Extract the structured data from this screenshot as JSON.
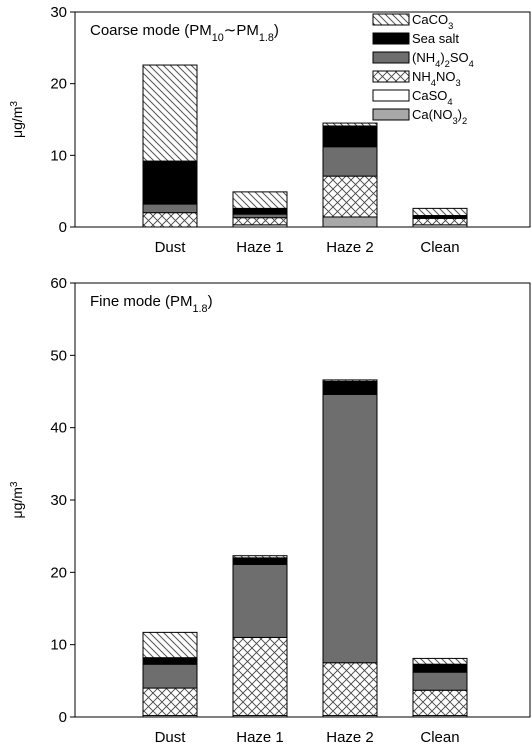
{
  "colors": {
    "CaCO3": "#ffffff",
    "Sea salt": "#ffffff",
    "(NH4)2SO4": "#6e6e6e",
    "NH4NO3": "#ffffff",
    "CaSO4": "#ffffff",
    "Ca(NO3)2": "#a8a8a8"
  },
  "chart_data": [
    {
      "type": "bar",
      "stacked": true,
      "title": {
        "text": "Coarse mode (PM",
        "sub1": "10",
        "sep": "∼",
        "text2": "PM",
        "sub2": "1.8",
        "close": ")"
      },
      "ylabel": "μg/m",
      "ylabel_sup": "3",
      "ylim": [
        0,
        30
      ],
      "yticks": [
        "0",
        "10",
        "20",
        "30"
      ],
      "categories": [
        "Dust",
        "Haze 1",
        "Haze 2",
        "Clean"
      ],
      "legend_position": "top-right",
      "series": [
        {
          "key": "Ca(NO3)2",
          "values": [
            0,
            0,
            1.4,
            0
          ]
        },
        {
          "key": "CaSO4",
          "values": [
            0,
            0.3,
            0,
            0.3
          ]
        },
        {
          "key": "NH4NO3",
          "values": [
            2.0,
            1.0,
            5.7,
            0.9
          ]
        },
        {
          "key": "(NH4)2SO4",
          "values": [
            1.2,
            0.5,
            4.1,
            0.1
          ]
        },
        {
          "key": "Sea salt",
          "values": [
            6.0,
            0.8,
            2.9,
            0.3
          ]
        },
        {
          "key": "CaCO3",
          "values": [
            13.4,
            2.3,
            0.4,
            1.0
          ]
        }
      ]
    },
    {
      "type": "bar",
      "stacked": true,
      "title": {
        "text": "Fine mode (PM",
        "sub1": "1.8",
        "close": ")"
      },
      "ylabel": "μg/m",
      "ylabel_sup": "3",
      "ylim": [
        0,
        60
      ],
      "yticks": [
        "0",
        "10",
        "20",
        "30",
        "40",
        "50",
        "60"
      ],
      "categories": [
        "Dust",
        "Haze 1",
        "Haze 2",
        "Clean"
      ],
      "series": [
        {
          "key": "Ca(NO3)2",
          "values": [
            0,
            0,
            0,
            0
          ]
        },
        {
          "key": "CaSO4",
          "values": [
            0.2,
            0.2,
            0.2,
            0.2
          ]
        },
        {
          "key": "NH4NO3",
          "values": [
            3.8,
            10.8,
            7.3,
            3.5
          ]
        },
        {
          "key": "(NH4)2SO4",
          "values": [
            3.3,
            10.1,
            37.1,
            2.5
          ]
        },
        {
          "key": "Sea salt",
          "values": [
            0.9,
            0.9,
            1.8,
            1.1
          ]
        },
        {
          "key": "CaCO3",
          "values": [
            3.5,
            0.3,
            0.2,
            0.8
          ]
        }
      ]
    }
  ],
  "legend": [
    {
      "key": "CaCO3",
      "text": "CaCO",
      "sub": "3"
    },
    {
      "key": "Sea salt",
      "text": "Sea salt"
    },
    {
      "key": "(NH4)2SO4",
      "text": "(NH",
      "sub": "4",
      "text2": ")",
      "sub2": "2",
      "text3": "SO",
      "sub3": "4"
    },
    {
      "key": "NH4NO3",
      "text": "NH",
      "sub": "4",
      "text2": "NO",
      "sub2": "3"
    },
    {
      "key": "CaSO4",
      "text": "CaSO",
      "sub": "4"
    },
    {
      "key": "Ca(NO3)2",
      "text": "Ca(NO",
      "sub": "3",
      "text2": ")",
      "sub2": "2"
    }
  ]
}
